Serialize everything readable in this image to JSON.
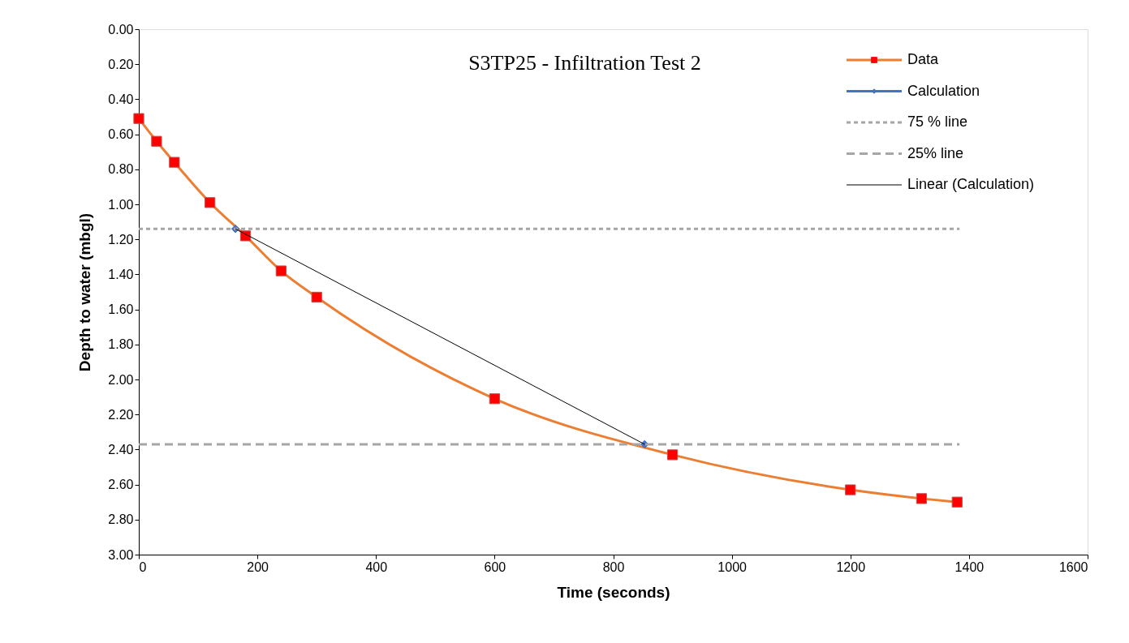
{
  "chart_data": {
    "type": "line",
    "title": "S3TP25  - Infiltration Test 2",
    "xlabel": "Time (seconds)",
    "ylabel": "Depth to water (mbgl)",
    "xlim": [
      0,
      1600
    ],
    "xticks": [
      0,
      200,
      400,
      600,
      800,
      1000,
      1200,
      1400,
      1600
    ],
    "ylim": [
      3.0,
      0.0
    ],
    "yticks": [
      {
        "value": 0,
        "label": "0.00"
      },
      {
        "value": 0.2,
        "label": "0.20"
      },
      {
        "value": 0.4,
        "label": "0.40"
      },
      {
        "value": 0.6,
        "label": "0.60"
      },
      {
        "value": 0.8,
        "label": "0.80"
      },
      {
        "value": 1.0,
        "label": "1.00"
      },
      {
        "value": 1.2,
        "label": "1.20"
      },
      {
        "value": 1.4,
        "label": "1.40"
      },
      {
        "value": 1.6,
        "label": "1.60"
      },
      {
        "value": 1.8,
        "label": "1.80"
      },
      {
        "value": 2.0,
        "label": "2.00"
      },
      {
        "value": 2.2,
        "label": "2.20"
      },
      {
        "value": 2.4,
        "label": "2.40"
      },
      {
        "value": 2.6,
        "label": "2.60"
      },
      {
        "value": 2.8,
        "label": "2.80"
      },
      {
        "value": 3.0,
        "label": "3.00"
      }
    ],
    "grid": false,
    "legend": "top right",
    "series": [
      {
        "name": "Data",
        "color": "#ed7d31",
        "colors": [
          "#ff0000",
          "#ff0000",
          "#ff0000",
          "#ff0000",
          "#ff0000",
          "#ff0000",
          "#ff0000",
          "#ff0000",
          "#ff0000",
          "#ff0000",
          "#ff0000",
          "#ff0000"
        ],
        "marker": "square",
        "line_style": "solid",
        "x": [
          0,
          30,
          60,
          120,
          180,
          240,
          300,
          600,
          900,
          1200,
          1320,
          1380
        ],
        "values": [
          0.51,
          0.64,
          0.76,
          0.99,
          1.18,
          1.38,
          1.53,
          2.11,
          2.43,
          2.63,
          2.68,
          2.7
        ]
      },
      {
        "name": "Calculation",
        "type": "scatter",
        "color": "#4472c4",
        "marker": "diamond",
        "line_style": "solid",
        "x": [
          163,
          853
        ],
        "values": [
          1.14,
          2.37
        ]
      },
      {
        "name": "75 % line",
        "color": "#a6a6a6",
        "marker": "none",
        "line_style": "dotted",
        "x": [
          0,
          1384
        ],
        "values": [
          1.14,
          1.14
        ]
      },
      {
        "name": "25% line",
        "color": "#a6a6a6",
        "marker": "none",
        "line_style": "dashed",
        "x": [
          0,
          1384
        ],
        "values": [
          2.37,
          2.37
        ]
      },
      {
        "name": "Linear (Calculation)",
        "color": "#000000",
        "marker": "none",
        "line_style": "solid",
        "x": [
          163,
          853
        ],
        "values": [
          1.14,
          2.37
        ]
      }
    ]
  }
}
